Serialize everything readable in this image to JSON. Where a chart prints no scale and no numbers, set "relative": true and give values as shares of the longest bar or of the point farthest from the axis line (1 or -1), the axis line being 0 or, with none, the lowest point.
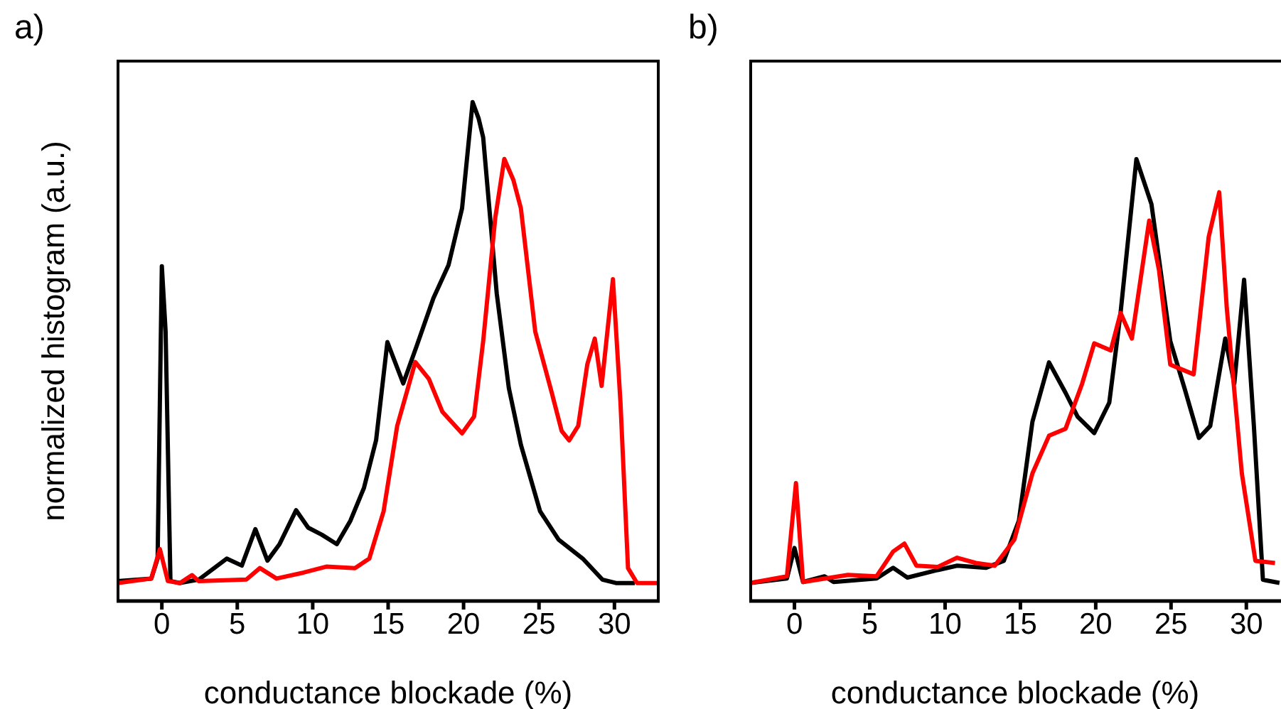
{
  "chart_data": [
    {
      "type": "line",
      "title": "a)",
      "xlabel": "conductance blockade (%)",
      "ylabel": "normalized histogram (a.u.)",
      "relative": true,
      "xlim": [
        -3,
        33
      ],
      "xticks": [
        0,
        5,
        10,
        15,
        20,
        25,
        30
      ],
      "grid": false,
      "legend": false,
      "series": [
        {
          "color": "#000000",
          "x": [
            -2.95,
            -0.7,
            -0.28,
            0,
            0.25,
            0.57,
            1.2,
            2.45,
            4.3,
            5.3,
            6.2,
            7.0,
            7.8,
            8.9,
            9.7,
            10.6,
            11.6,
            12.5,
            13.4,
            14.2,
            14.95,
            16.0,
            16.9,
            18.0,
            19.0,
            19.9,
            20.6,
            21.0,
            21.3,
            22.2,
            23.0,
            23.8,
            25.07,
            26.3,
            27.9,
            29.2,
            30.1,
            31.35
          ],
          "values": [
            0.04,
            0.045,
            0.085,
            0.671,
            0.54,
            0.04,
            0.036,
            0.043,
            0.085,
            0.071,
            0.144,
            0.081,
            0.114,
            0.182,
            0.147,
            0.133,
            0.114,
            0.161,
            0.227,
            0.322,
            0.519,
            0.436,
            0.512,
            0.607,
            0.673,
            0.787,
            1.0,
            0.967,
            0.929,
            0.616,
            0.427,
            0.313,
            0.18,
            0.123,
            0.085,
            0.043,
            0.036,
            0.036
          ]
        },
        {
          "color": "#ff0000",
          "x": [
            -2.95,
            -0.7,
            -0.13,
            0.4,
            1.2,
            2.0,
            2.45,
            5.6,
            6.5,
            7.6,
            9.4,
            10.9,
            12.8,
            13.75,
            14.7,
            15.6,
            16.8,
            17.7,
            18.6,
            19.9,
            20.7,
            21.3,
            22.1,
            22.7,
            23.3,
            23.8,
            24.75,
            25.85,
            26.5,
            27.0,
            27.6,
            28.2,
            28.7,
            29.15,
            29.9,
            30.4,
            30.9,
            31.5,
            32.9
          ],
          "values": [
            0.036,
            0.045,
            0.104,
            0.04,
            0.036,
            0.052,
            0.04,
            0.043,
            0.066,
            0.045,
            0.057,
            0.069,
            0.066,
            0.085,
            0.18,
            0.351,
            0.479,
            0.445,
            0.379,
            0.336,
            0.37,
            0.521,
            0.768,
            0.886,
            0.844,
            0.787,
            0.54,
            0.417,
            0.341,
            0.322,
            0.351,
            0.474,
            0.526,
            0.431,
            0.645,
            0.398,
            0.066,
            0.036,
            0.036
          ]
        }
      ]
    },
    {
      "type": "line",
      "title": "b)",
      "xlabel": "conductance blockade (%)",
      "relative": true,
      "xlim": [
        -3,
        32.3
      ],
      "xticks": [
        0,
        5,
        10,
        15,
        20,
        25,
        30
      ],
      "grid": false,
      "legend": false,
      "series": [
        {
          "color": "#000000",
          "x": [
            -2.9,
            -0.5,
            0,
            0.57,
            2.0,
            2.6,
            5.45,
            6.55,
            7.5,
            9.5,
            10.8,
            12.7,
            13.9,
            14.9,
            15.8,
            16.9,
            18.0,
            18.8,
            19.9,
            20.9,
            21.65,
            22.7,
            23.7,
            24.95,
            25.9,
            26.85,
            27.6,
            28.6,
            29.2,
            29.85,
            30.5,
            31.1,
            32.2
          ],
          "values": [
            0.041,
            0.051,
            0.12,
            0.043,
            0.056,
            0.043,
            0.051,
            0.075,
            0.053,
            0.07,
            0.08,
            0.075,
            0.091,
            0.182,
            0.406,
            0.54,
            0.471,
            0.417,
            0.38,
            0.449,
            0.652,
            1.0,
            0.898,
            0.588,
            0.481,
            0.369,
            0.396,
            0.594,
            0.492,
            0.727,
            0.396,
            0.048,
            0.041
          ]
        },
        {
          "color": "#ff0000",
          "x": [
            -2.9,
            -0.5,
            0.1,
            0.57,
            3.55,
            5.45,
            6.55,
            7.3,
            8.1,
            9.5,
            10.8,
            12.05,
            13.3,
            14.6,
            15.8,
            16.9,
            18.0,
            19.1,
            19.9,
            21.0,
            21.65,
            22.4,
            23.55,
            24.2,
            24.95,
            26.5,
            27.5,
            28.2,
            28.7,
            29.7,
            30.6,
            31.9
          ],
          "values": [
            0.041,
            0.056,
            0.267,
            0.043,
            0.059,
            0.056,
            0.112,
            0.13,
            0.08,
            0.077,
            0.098,
            0.086,
            0.08,
            0.139,
            0.289,
            0.374,
            0.39,
            0.492,
            0.583,
            0.567,
            0.652,
            0.594,
            0.861,
            0.749,
            0.535,
            0.513,
            0.824,
            0.925,
            0.663,
            0.289,
            0.091,
            0.086
          ]
        }
      ]
    }
  ]
}
